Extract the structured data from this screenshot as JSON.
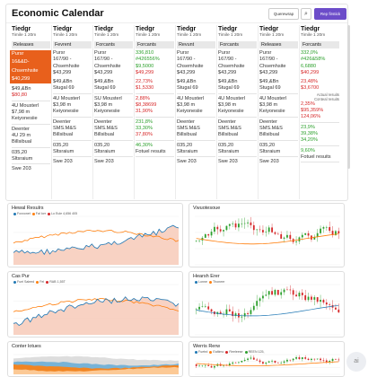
{
  "header": {
    "title": "Economic Calendar",
    "query_label": "Querewrap",
    "search_glyph": "⌕",
    "primary_label": "Rep firstick"
  },
  "columns": [
    {
      "hdr": [
        "Tiedgr",
        "Timile 1 20m",
        "Releases"
      ],
      "rows": [
        {
          "t": "Pursr",
          "c": "hi"
        },
        {
          "t": "16&&D-",
          "c": "hi"
        },
        {
          "t": "Chsemhsite",
          "c": "hi"
        },
        {
          "t": "$40,299",
          "c": "hi"
        },
        {
          "t": "",
          "c": "sp"
        },
        {
          "t": "$49,&Bn",
          "c": ""
        },
        {
          "t": "$80,80",
          "c": "r"
        },
        {
          "t": "",
          "c": "sep"
        },
        {
          "t": "4U Mousterl",
          "c": ""
        },
        {
          "t": "$7,98 m",
          "c": ""
        },
        {
          "t": "Keiyonesiie",
          "c": ""
        },
        {
          "t": "",
          "c": "sep"
        },
        {
          "t": "Deenter",
          "c": ""
        },
        {
          "t": "4U 29 m",
          "c": ""
        },
        {
          "t": "Billsibual",
          "c": ""
        },
        {
          "t": "",
          "c": "sep"
        },
        {
          "t": "035,20",
          "c": ""
        },
        {
          "t": "Sltsraium",
          "c": ""
        },
        {
          "t": "",
          "c": "sep"
        },
        {
          "t": "Swe 203",
          "c": ""
        }
      ]
    },
    {
      "hdr": [
        "Tiedgr",
        "Timile 1 20m",
        "Fevrent"
      ],
      "rows": [
        {
          "t": "Pursr",
          "c": ""
        },
        {
          "t": "167/90 -",
          "c": ""
        },
        {
          "t": "Chsemhsite",
          "c": ""
        },
        {
          "t": "$43,299",
          "c": ""
        },
        {
          "t": "",
          "c": "sp"
        },
        {
          "t": "$49,&Bn",
          "c": ""
        },
        {
          "t": "Stugal 69",
          "c": ""
        },
        {
          "t": "",
          "c": "sep"
        },
        {
          "t": "4U Mousterl",
          "c": ""
        },
        {
          "t": "$3,98 m",
          "c": ""
        },
        {
          "t": "Keiyonesiie",
          "c": ""
        },
        {
          "t": "",
          "c": "sep"
        },
        {
          "t": "Deenter",
          "c": ""
        },
        {
          "t": "SMS.M&S",
          "c": ""
        },
        {
          "t": "Billsibual",
          "c": ""
        },
        {
          "t": "",
          "c": "sep"
        },
        {
          "t": "035,20",
          "c": ""
        },
        {
          "t": "Sltsraium",
          "c": ""
        },
        {
          "t": "",
          "c": "sep"
        },
        {
          "t": "Swe 203",
          "c": ""
        }
      ]
    },
    {
      "hdr": [
        "Tiedgr",
        "Timile 1 20m",
        "Forcants"
      ],
      "rows": [
        {
          "t": "Pursr",
          "c": ""
        },
        {
          "t": "167/90 -",
          "c": ""
        },
        {
          "t": "Chsemhsite",
          "c": ""
        },
        {
          "t": "$43,299",
          "c": ""
        },
        {
          "t": "",
          "c": "sp"
        },
        {
          "t": "$49,&Bn",
          "c": ""
        },
        {
          "t": "Stugal 69",
          "c": ""
        },
        {
          "t": "",
          "c": "sep"
        },
        {
          "t": "SU Mousterl",
          "c": ""
        },
        {
          "t": "$3,98 m",
          "c": ""
        },
        {
          "t": "Keiyonesiie",
          "c": ""
        },
        {
          "t": "",
          "c": "sep"
        },
        {
          "t": "Deenter",
          "c": ""
        },
        {
          "t": "SMS.M&S",
          "c": ""
        },
        {
          "t": "Billsibual",
          "c": ""
        },
        {
          "t": "",
          "c": "sep"
        },
        {
          "t": "035,20",
          "c": ""
        },
        {
          "t": "Sltsraium",
          "c": ""
        },
        {
          "t": "",
          "c": "sep"
        },
        {
          "t": "Swe 203",
          "c": ""
        }
      ]
    },
    {
      "hdr": [
        "Tiedgr",
        "Timile 1 20m",
        "Forcants"
      ],
      "rows": [
        {
          "t": "336,810",
          "c": "g"
        },
        {
          "t": "#426556%",
          "c": "g"
        },
        {
          "t": "$9,5000",
          "c": "g"
        },
        {
          "t": "$49,299",
          "c": "r"
        },
        {
          "t": "",
          "c": "sp"
        },
        {
          "t": "22,73%",
          "c": "r"
        },
        {
          "t": "$1,5330",
          "c": "r"
        },
        {
          "t": "",
          "c": "sep"
        },
        {
          "t": "2,88%",
          "c": "r"
        },
        {
          "t": "$8,38699",
          "c": "r"
        },
        {
          "t": "31,90%",
          "c": "r"
        },
        {
          "t": "",
          "c": "sep"
        },
        {
          "t": "231,8%",
          "c": "g"
        },
        {
          "t": "33,30%",
          "c": "g"
        },
        {
          "t": "37,80%",
          "c": "r"
        },
        {
          "t": "",
          "c": "sep"
        },
        {
          "t": "46,30%",
          "c": "g"
        },
        {
          "t": "Fotuel resuits",
          "c": ""
        },
        {
          "t": "",
          "c": "sep"
        },
        {
          "t": "",
          "c": ""
        }
      ]
    },
    {
      "hdr": [
        "Tiedgr",
        "Timile 1 20m",
        "Revunt"
      ],
      "rows": [
        {
          "t": "Pursr",
          "c": ""
        },
        {
          "t": "167/90 -",
          "c": ""
        },
        {
          "t": "Chsemhsite",
          "c": ""
        },
        {
          "t": "$43,299",
          "c": ""
        },
        {
          "t": "",
          "c": "sp"
        },
        {
          "t": "$49,&Bn",
          "c": ""
        },
        {
          "t": "Stugal 69",
          "c": ""
        },
        {
          "t": "",
          "c": "sep"
        },
        {
          "t": "4U Mousterl",
          "c": ""
        },
        {
          "t": "$3,98 m",
          "c": ""
        },
        {
          "t": "Keiyonesiie",
          "c": ""
        },
        {
          "t": "",
          "c": "sep"
        },
        {
          "t": "Deenter",
          "c": ""
        },
        {
          "t": "SMS.M&S",
          "c": ""
        },
        {
          "t": "Billsibual",
          "c": ""
        },
        {
          "t": "",
          "c": "sep"
        },
        {
          "t": "035,20",
          "c": ""
        },
        {
          "t": "Sltsraium",
          "c": ""
        },
        {
          "t": "",
          "c": "sep"
        },
        {
          "t": "Swe 203",
          "c": ""
        }
      ]
    },
    {
      "hdr": [
        "Tiedgr",
        "Timile 1 20m",
        "Forcants"
      ],
      "rows": [
        {
          "t": "Pursr",
          "c": ""
        },
        {
          "t": "167/90 -",
          "c": ""
        },
        {
          "t": "Chsemhsite",
          "c": ""
        },
        {
          "t": "$43,299",
          "c": ""
        },
        {
          "t": "",
          "c": "sp"
        },
        {
          "t": "$49,&Bn",
          "c": ""
        },
        {
          "t": "Stugal 69",
          "c": ""
        },
        {
          "t": "",
          "c": "sep"
        },
        {
          "t": "4U Mousterl",
          "c": ""
        },
        {
          "t": "$3,98 m",
          "c": ""
        },
        {
          "t": "Keiyonesiie",
          "c": ""
        },
        {
          "t": "",
          "c": "sep"
        },
        {
          "t": "Deenter",
          "c": ""
        },
        {
          "t": "SMS.M&S",
          "c": ""
        },
        {
          "t": "Billsibual",
          "c": ""
        },
        {
          "t": "",
          "c": "sep"
        },
        {
          "t": "035,20",
          "c": ""
        },
        {
          "t": "Sltsraium",
          "c": ""
        },
        {
          "t": "",
          "c": "sep"
        },
        {
          "t": "Swe 203",
          "c": ""
        }
      ]
    },
    {
      "hdr": [
        "Tiedgr",
        "Timile 1 20m",
        "Releases"
      ],
      "rows": [
        {
          "t": "Pursr",
          "c": ""
        },
        {
          "t": "167/90 -",
          "c": ""
        },
        {
          "t": "Chsemhsite",
          "c": ""
        },
        {
          "t": "$43,299",
          "c": ""
        },
        {
          "t": "",
          "c": "sp"
        },
        {
          "t": "$49,&Bn",
          "c": ""
        },
        {
          "t": "Stugal 69",
          "c": ""
        },
        {
          "t": "",
          "c": "sep"
        },
        {
          "t": "4U Mousterl",
          "c": ""
        },
        {
          "t": "$3,98 m",
          "c": ""
        },
        {
          "t": "Keiyonesiie",
          "c": ""
        },
        {
          "t": "",
          "c": "sep"
        },
        {
          "t": "Deenter",
          "c": ""
        },
        {
          "t": "SMS.M&S",
          "c": ""
        },
        {
          "t": "Billsibual",
          "c": ""
        },
        {
          "t": "",
          "c": "sep"
        },
        {
          "t": "035,20",
          "c": ""
        },
        {
          "t": "Sltsraium",
          "c": ""
        },
        {
          "t": "",
          "c": "sep"
        },
        {
          "t": "Swe 203",
          "c": ""
        }
      ]
    },
    {
      "hdr": [
        "Tiedgr",
        "Timile 1 20m",
        "Forcants"
      ],
      "rows": [
        {
          "t": "332,0%",
          "c": "g"
        },
        {
          "t": "#426&58%",
          "c": "g"
        },
        {
          "t": "6,6880",
          "c": "g"
        },
        {
          "t": "$40,299",
          "c": "r"
        },
        {
          "t": "",
          "c": "sp"
        },
        {
          "t": "23,48%",
          "c": "r"
        },
        {
          "t": "$3,6700",
          "c": "r"
        },
        {
          "t": "Actual resuits",
          "c": "ann"
        },
        {
          "t": "Conteal resuits",
          "c": "ann"
        },
        {
          "t": "2,35%",
          "c": "r"
        },
        {
          "t": "$95,359%",
          "c": "r"
        },
        {
          "t": "124,06%",
          "c": "r"
        },
        {
          "t": "",
          "c": "sep"
        },
        {
          "t": "23,9%",
          "c": "g"
        },
        {
          "t": "39,38%",
          "c": "g"
        },
        {
          "t": "34,20%",
          "c": "g"
        },
        {
          "t": "",
          "c": "sep"
        },
        {
          "t": "9,60%",
          "c": "g"
        },
        {
          "t": "Fotuel resuits",
          "c": ""
        },
        {
          "t": "",
          "c": "sep"
        },
        {
          "t": "",
          "c": ""
        }
      ]
    }
  ],
  "annotation": [
    "Actual resuits",
    "Conteal resuits"
  ],
  "charts": [
    {
      "title": "Hewal Resulrs",
      "legend": [
        "Foxxonet",
        "Fal lorr",
        "Lo Eule 4,656 405"
      ],
      "kind": "areaLine"
    },
    {
      "title": "Vwuotesoue",
      "legend": [],
      "kind": "candleSmooth"
    },
    {
      "title": "Cas Pur",
      "legend": [
        "Fuel Saleed",
        "Fel",
        "RAB 1,55T"
      ],
      "kind": "areaLine2"
    },
    {
      "title": "Hearsh Erer",
      "legend": [
        "Lonne",
        "Thoneer"
      ],
      "kind": "candle"
    },
    {
      "title": "Conter lotues",
      "legend": [],
      "kind": "stacked"
    },
    {
      "title": "Werris Rerw",
      "legend": [
        "Fuetrd",
        "Ealtimo",
        "Reeleese",
        "REEN 125,"
      ],
      "kind": "candle2"
    }
  ],
  "colors": {
    "accent": "#6c4cc9",
    "highlight": "#e8601c",
    "up": "#2ca02c",
    "down": "#d62728",
    "blue": "#1f77b4",
    "orange": "#ff7f0e"
  },
  "icons": {
    "search": "search-icon",
    "assistant": "assistant-bubble-icon"
  },
  "assistant_label": "ai"
}
